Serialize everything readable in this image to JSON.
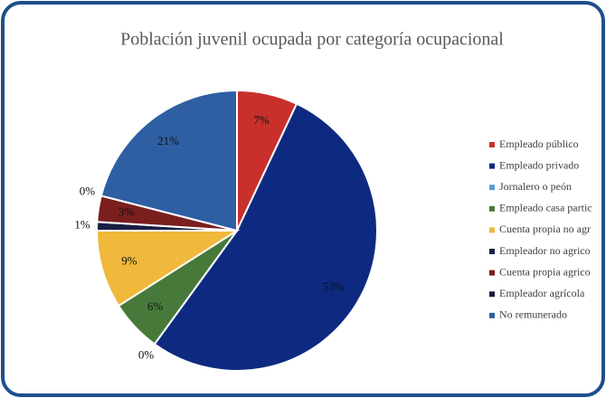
{
  "chart_data": {
    "type": "pie",
    "title": "Población juvenil ocupada por categoría ocupacional",
    "categories": [
      "Empleado público",
      "Empleado privado",
      "Jornalero o peón",
      "Empleado casa partic",
      "Cuenta propia no agr",
      "Empleador no agrico",
      "Cuenta propia agrico",
      "Empleador agrícola",
      "No remunerado"
    ],
    "values": [
      7,
      53,
      0,
      6,
      9,
      1,
      3,
      0,
      21
    ],
    "value_labels": [
      "7%",
      "53%",
      "0%",
      "6%",
      "9%",
      "1%",
      "3%",
      "0%",
      "21%"
    ],
    "colors": [
      "#c9302c",
      "#0d2a80",
      "#5b9bd5",
      "#477a3a",
      "#f0b93c",
      "#1a1f45",
      "#7a1e1e",
      "#1b2040",
      "#2e5fa3"
    ],
    "legend": "right"
  }
}
